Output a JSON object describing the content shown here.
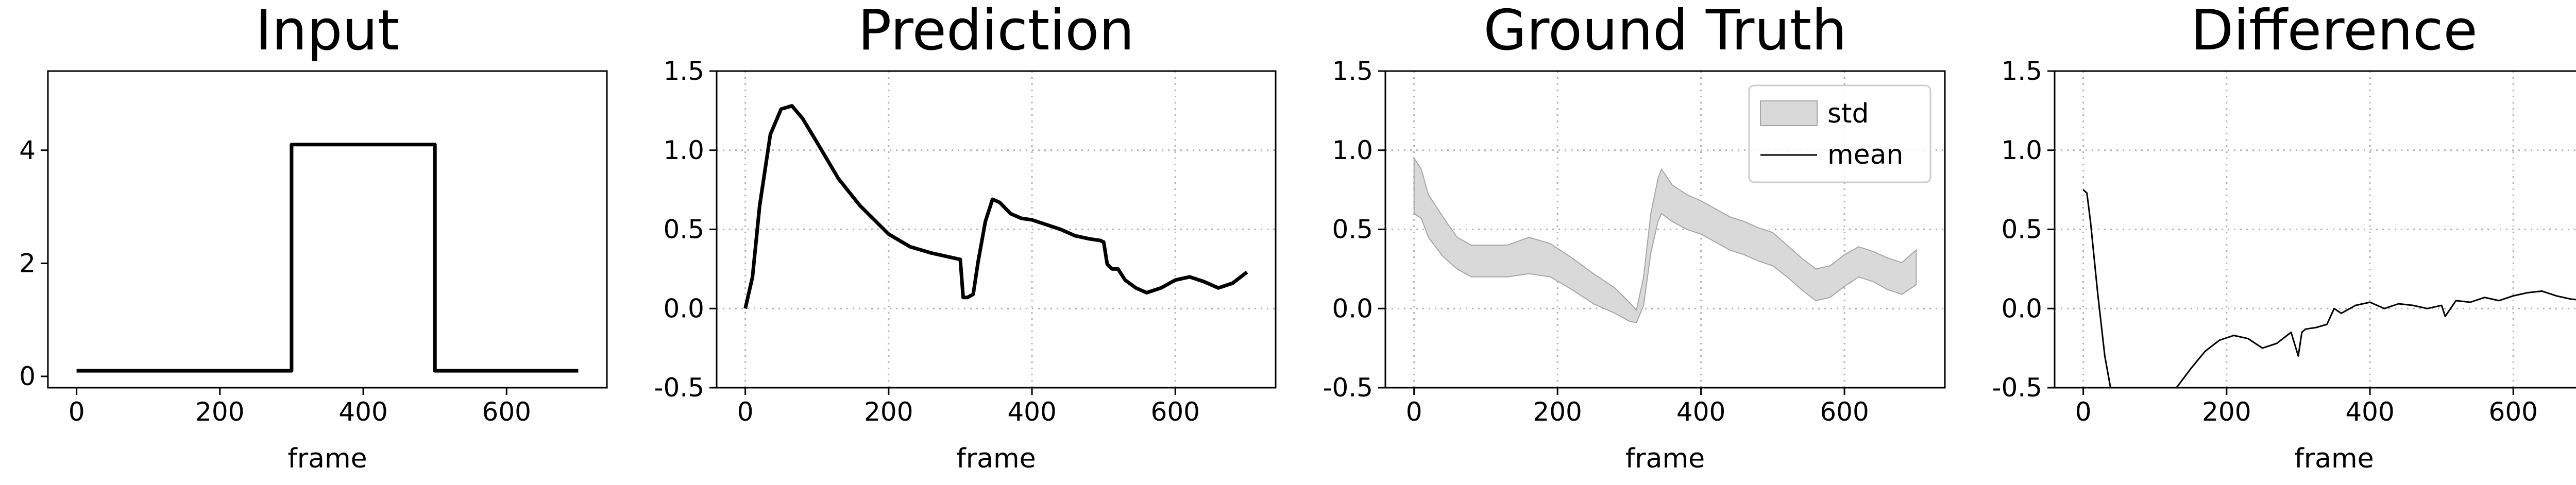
{
  "chart_data": [
    {
      "type": "line",
      "title": "Input",
      "xlabel": "frame",
      "ylabel": "",
      "xlim": [
        -40,
        740
      ],
      "ylim": [
        -0.2,
        5.4
      ],
      "xticks": [
        0,
        200,
        400,
        600
      ],
      "yticks": [
        0,
        2,
        4
      ],
      "grid": false,
      "series": [
        {
          "x": [
            0,
            300,
            300,
            500,
            500,
            700
          ],
          "y": [
            0.1,
            0.1,
            4.1,
            4.1,
            0.1,
            0.1
          ],
          "color": "#000000"
        }
      ]
    },
    {
      "type": "line",
      "title": "Prediction",
      "xlabel": "frame",
      "ylabel": "",
      "xlim": [
        -40,
        740
      ],
      "ylim": [
        -0.5,
        1.5
      ],
      "xticks": [
        0,
        200,
        400,
        600
      ],
      "yticks": [
        -0.5,
        0.0,
        0.5,
        1.0,
        1.5
      ],
      "grid": true,
      "series": [
        {
          "x": [
            0,
            10,
            20,
            35,
            50,
            65,
            80,
            100,
            130,
            160,
            200,
            230,
            260,
            300,
            304,
            310,
            318,
            325,
            335,
            345,
            355,
            370,
            385,
            400,
            420,
            440,
            460,
            480,
            495,
            500,
            505,
            512,
            520,
            530,
            545,
            560,
            580,
            600,
            620,
            640,
            660,
            680,
            700
          ],
          "y": [
            0.0,
            0.2,
            0.65,
            1.1,
            1.26,
            1.28,
            1.2,
            1.05,
            0.82,
            0.65,
            0.47,
            0.39,
            0.35,
            0.31,
            0.07,
            0.07,
            0.09,
            0.3,
            0.55,
            0.69,
            0.67,
            0.6,
            0.57,
            0.56,
            0.53,
            0.5,
            0.46,
            0.44,
            0.43,
            0.42,
            0.28,
            0.25,
            0.25,
            0.18,
            0.13,
            0.1,
            0.13,
            0.18,
            0.2,
            0.17,
            0.13,
            0.16,
            0.23
          ],
          "color": "#000000"
        }
      ]
    },
    {
      "type": "line",
      "title": "Ground Truth",
      "xlabel": "frame",
      "ylabel": "",
      "xlim": [
        -40,
        740
      ],
      "ylim": [
        -0.5,
        1.5
      ],
      "xticks": [
        0,
        200,
        400,
        600
      ],
      "yticks": [
        -0.5,
        0.0,
        0.5,
        1.0,
        1.5
      ],
      "grid": true,
      "legend": {
        "position": "top-right",
        "entries": [
          "std",
          "mean"
        ]
      },
      "series": [
        {
          "name": "mean",
          "x": [
            0,
            10,
            20,
            40,
            60,
            80,
            100,
            130,
            160,
            190,
            220,
            250,
            280,
            300,
            310,
            320,
            330,
            340,
            345,
            360,
            380,
            400,
            420,
            440,
            460,
            480,
            500,
            520,
            540,
            560,
            580,
            600,
            620,
            640,
            660,
            680,
            700
          ],
          "y": [
            0.75,
            0.7,
            0.57,
            0.45,
            0.35,
            0.3,
            0.3,
            0.3,
            0.33,
            0.3,
            0.22,
            0.12,
            0.05,
            -0.02,
            -0.05,
            0.1,
            0.45,
            0.68,
            0.72,
            0.65,
            0.6,
            0.57,
            0.52,
            0.47,
            0.44,
            0.4,
            0.37,
            0.3,
            0.22,
            0.14,
            0.16,
            0.24,
            0.29,
            0.26,
            0.22,
            0.19,
            0.25
          ],
          "color": "#000000"
        },
        {
          "name": "std",
          "x": [
            0,
            10,
            20,
            40,
            60,
            80,
            100,
            130,
            160,
            190,
            220,
            250,
            280,
            300,
            310,
            320,
            330,
            340,
            345,
            360,
            380,
            400,
            420,
            440,
            460,
            480,
            500,
            520,
            540,
            560,
            580,
            600,
            620,
            640,
            660,
            680,
            700
          ],
          "lower": [
            0.6,
            0.57,
            0.45,
            0.33,
            0.25,
            0.2,
            0.2,
            0.2,
            0.22,
            0.2,
            0.12,
            0.03,
            -0.03,
            -0.08,
            -0.09,
            0.02,
            0.35,
            0.55,
            0.6,
            0.55,
            0.5,
            0.47,
            0.42,
            0.37,
            0.34,
            0.3,
            0.27,
            0.2,
            0.12,
            0.05,
            0.07,
            0.14,
            0.2,
            0.17,
            0.12,
            0.09,
            0.15
          ],
          "upper": [
            0.95,
            0.88,
            0.72,
            0.58,
            0.45,
            0.4,
            0.4,
            0.4,
            0.45,
            0.41,
            0.32,
            0.22,
            0.13,
            0.04,
            -0.01,
            0.2,
            0.6,
            0.82,
            0.88,
            0.78,
            0.72,
            0.68,
            0.63,
            0.58,
            0.55,
            0.51,
            0.48,
            0.4,
            0.32,
            0.25,
            0.27,
            0.34,
            0.39,
            0.36,
            0.32,
            0.29,
            0.37
          ],
          "color": "#bfbfbf"
        }
      ]
    },
    {
      "type": "line",
      "title": "Difference",
      "xlabel": "frame",
      "ylabel": "",
      "xlim": [
        -40,
        740
      ],
      "ylim": [
        -0.5,
        1.5
      ],
      "xticks": [
        0,
        200,
        400,
        600
      ],
      "yticks": [
        -0.5,
        0.0,
        0.5,
        1.0,
        1.5
      ],
      "grid": true,
      "series": [
        {
          "x": [
            0,
            5,
            10,
            20,
            30,
            38
          ],
          "y": [
            0.75,
            0.73,
            0.55,
            0.1,
            -0.3,
            -0.5
          ],
          "color": "#000000"
        },
        {
          "x": [
            130,
            150,
            170,
            190,
            210,
            230,
            250,
            270,
            290,
            300,
            305,
            310,
            325,
            340,
            350,
            360,
            380,
            400,
            420,
            440,
            460,
            480,
            500,
            505,
            520,
            540,
            560,
            580,
            600,
            620,
            640,
            660,
            680,
            700
          ],
          "y": [
            -0.5,
            -0.38,
            -0.27,
            -0.2,
            -0.17,
            -0.19,
            -0.25,
            -0.22,
            -0.15,
            -0.3,
            -0.15,
            -0.13,
            -0.12,
            -0.1,
            0.0,
            -0.03,
            0.02,
            0.04,
            0.0,
            0.03,
            0.02,
            0.0,
            0.02,
            -0.05,
            0.05,
            0.04,
            0.07,
            0.05,
            0.08,
            0.1,
            0.11,
            0.08,
            0.06,
            0.05
          ],
          "color": "#000000"
        }
      ]
    }
  ]
}
